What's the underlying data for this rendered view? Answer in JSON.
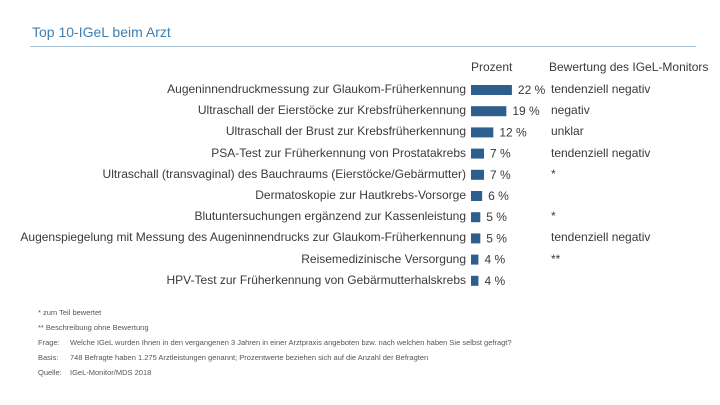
{
  "header": {
    "title": "Top 10-IGeL beim Arzt",
    "col_percent": "Prozent",
    "col_rating": "Bewertung des IGeL-Monitors"
  },
  "chart_data": {
    "type": "bar",
    "orientation": "horizontal",
    "title": "Top 10-IGeL beim Arzt",
    "value_unit": "%",
    "bar_color": "#2e5e8e",
    "categories": [
      "Augeninnendruckmessung zur Glaukom-Früherkennung",
      "Ultraschall der Eierstöcke zur Krebsfrüherkennung",
      "Ultraschall der Brust zur Krebsfrüherkennung",
      "PSA-Test zur Früherkennung von Prostatakrebs",
      "Ultraschall (transvaginal) des Bauchraums (Eierstöcke/Gebärmutter)",
      "Dermatoskopie zur Hautkrebs-Vorsorge",
      "Blutuntersuchungen ergänzend zur Kassenleistung",
      "Augenspiegelung mit Messung des Augeninnendrucks zur Glaukom-Früherkennung",
      "Reisemedizinische Versorgung",
      "HPV-Test zur Früherkennung von Gebärmutterhalskrebs"
    ],
    "values": [
      22,
      19,
      12,
      7,
      7,
      6,
      5,
      5,
      4,
      4
    ],
    "value_labels": [
      "22 %",
      "19 %",
      "12 %",
      "7 %",
      "7 %",
      "6 %",
      "5 %",
      "5 %",
      "4 %",
      "4 %"
    ],
    "ratings": [
      "tendenziell negativ",
      "negativ",
      "unklar",
      "tendenziell negativ",
      "*",
      "",
      "*",
      "tendenziell negativ",
      "**",
      ""
    ]
  },
  "footnotes": {
    "star": "* zum Teil bewertet",
    "double_star": "** Beschreibung ohne Bewertung",
    "question_key": "Frage:",
    "question": "Welche IGeL wurden Ihnen in den vergangenen 3 Jahren in einer Arztpraxis angeboten bzw. nach welchen haben Sie selbst gefragt?",
    "basis_key": "Basis:",
    "basis": "748 Befragte haben 1.275 Arztleistungen genannt; Prozentwerte beziehen sich auf die Anzahl der Befragten",
    "source_key": "Quelle:",
    "source": "IGeL-Monitor/MDS 2018"
  }
}
